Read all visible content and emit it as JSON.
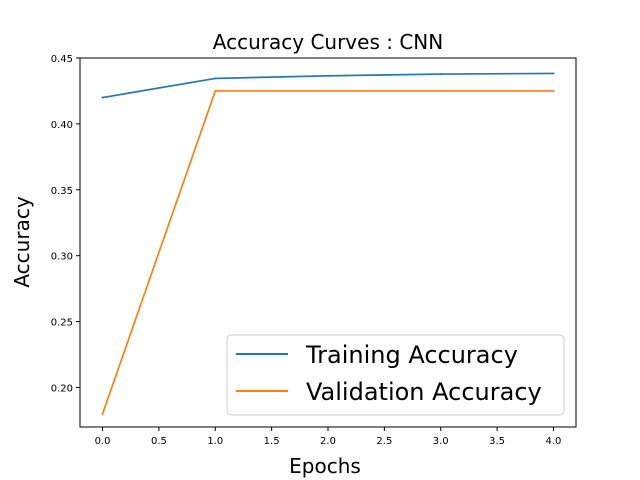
{
  "chart_data": {
    "type": "line",
    "title": "Accuracy Curves : CNN",
    "xlabel": "Epochs",
    "ylabel": "Accuracy",
    "xlim": [
      -0.2,
      4.2
    ],
    "ylim": [
      0.17,
      0.45
    ],
    "xticks": [
      0.0,
      0.5,
      1.0,
      1.5,
      2.0,
      2.5,
      3.0,
      3.5,
      4.0
    ],
    "xtick_labels": [
      "0.0",
      "0.5",
      "1.0",
      "1.5",
      "2.0",
      "2.5",
      "3.0",
      "3.5",
      "4.0"
    ],
    "yticks": [
      0.2,
      0.25,
      0.3,
      0.35,
      0.4,
      0.45
    ],
    "ytick_labels": [
      "0.20",
      "0.25",
      "0.30",
      "0.35",
      "0.40",
      "0.45"
    ],
    "grid": false,
    "legend_position": "bottom-right",
    "x": [
      0,
      1,
      2,
      3,
      4
    ],
    "series": [
      {
        "name": "Training Accuracy",
        "color": "#1f77b4",
        "values": [
          0.42,
          0.4345,
          0.4365,
          0.4378,
          0.4383
        ]
      },
      {
        "name": "Validation Accuracy",
        "color": "#ff7f0e",
        "values": [
          0.18,
          0.425,
          0.425,
          0.425,
          0.425
        ]
      }
    ]
  }
}
